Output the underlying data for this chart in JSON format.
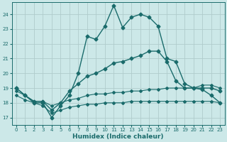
{
  "xlabel": "Humidex (Indice chaleur)",
  "bg_color": "#cce8e8",
  "grid_color": "#b0cccc",
  "line_color": "#1a6b6b",
  "xlim": [
    -0.5,
    23.5
  ],
  "ylim": [
    16.5,
    24.8
  ],
  "yticks": [
    17,
    18,
    19,
    20,
    21,
    22,
    23,
    24
  ],
  "xticks": [
    0,
    1,
    2,
    3,
    4,
    5,
    6,
    7,
    8,
    9,
    10,
    11,
    12,
    13,
    14,
    15,
    16,
    17,
    18,
    19,
    20,
    21,
    22,
    23
  ],
  "line1_x": [
    0,
    1,
    2,
    3,
    4,
    5,
    6,
    7,
    8,
    9,
    10,
    11,
    12,
    13,
    14,
    15,
    16,
    17,
    18,
    19,
    20,
    21,
    22,
    23
  ],
  "line1_y": [
    19.0,
    18.5,
    18.0,
    18.0,
    17.0,
    17.8,
    18.5,
    20.0,
    22.5,
    22.3,
    23.2,
    24.6,
    23.1,
    23.8,
    24.0,
    23.8,
    23.2,
    21.0,
    20.8,
    19.3,
    19.0,
    18.9,
    18.5,
    18.0
  ],
  "line2_x": [
    0,
    1,
    2,
    3,
    4,
    5,
    6,
    7,
    8,
    9,
    10,
    11,
    12,
    13,
    14,
    15,
    16,
    17,
    18,
    19,
    20,
    21,
    22,
    23
  ],
  "line2_y": [
    19.0,
    18.5,
    18.1,
    18.1,
    17.5,
    18.0,
    18.8,
    19.3,
    19.8,
    20.0,
    20.3,
    20.7,
    20.8,
    21.0,
    21.2,
    21.5,
    21.5,
    20.8,
    19.5,
    19.0,
    19.0,
    19.0,
    19.0,
    18.8
  ],
  "line3_x": [
    0,
    1,
    2,
    3,
    4,
    5,
    6,
    7,
    8,
    9,
    10,
    11,
    12,
    13,
    14,
    15,
    16,
    17,
    18,
    19,
    20,
    21,
    22,
    23
  ],
  "line3_y": [
    18.8,
    18.5,
    18.1,
    18.1,
    17.8,
    18.0,
    18.2,
    18.3,
    18.5,
    18.6,
    18.6,
    18.7,
    18.7,
    18.8,
    18.8,
    18.9,
    18.9,
    19.0,
    19.0,
    19.0,
    19.0,
    19.2,
    19.2,
    19.0
  ],
  "line4_x": [
    0,
    1,
    2,
    3,
    4,
    5,
    6,
    7,
    8,
    9,
    10,
    11,
    12,
    13,
    14,
    15,
    16,
    17,
    18,
    19,
    20,
    21,
    22,
    23
  ],
  "line4_y": [
    18.5,
    18.2,
    18.0,
    17.8,
    17.3,
    17.5,
    17.7,
    17.8,
    17.9,
    17.9,
    18.0,
    18.0,
    18.0,
    18.1,
    18.1,
    18.1,
    18.1,
    18.1,
    18.1,
    18.1,
    18.1,
    18.1,
    18.1,
    18.0
  ]
}
